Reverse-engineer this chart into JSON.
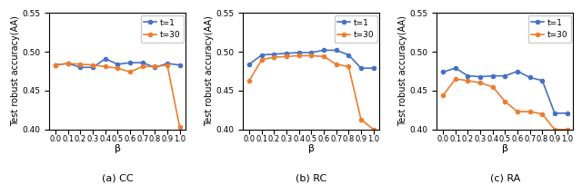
{
  "beta": [
    0.0,
    0.1,
    0.2,
    0.3,
    0.4,
    0.5,
    0.6,
    0.7,
    0.8,
    0.9,
    1.0
  ],
  "CC": {
    "t1": [
      0.483,
      0.485,
      0.48,
      0.48,
      0.491,
      0.484,
      0.486,
      0.486,
      0.48,
      0.485,
      0.483
    ],
    "t30": [
      0.483,
      0.485,
      0.484,
      0.483,
      0.481,
      0.479,
      0.474,
      0.481,
      0.481,
      0.483,
      0.403
    ]
  },
  "RC": {
    "t1": [
      0.484,
      0.496,
      0.497,
      0.498,
      0.499,
      0.499,
      0.502,
      0.502,
      0.496,
      0.479,
      0.479
    ],
    "t30": [
      0.463,
      0.49,
      0.493,
      0.494,
      0.495,
      0.495,
      0.494,
      0.484,
      0.481,
      0.413,
      0.4
    ]
  },
  "RA": {
    "t1": [
      0.474,
      0.479,
      0.469,
      0.468,
      0.469,
      0.469,
      0.475,
      0.467,
      0.463,
      0.421,
      0.421
    ],
    "t30": [
      0.444,
      0.465,
      0.463,
      0.46,
      0.455,
      0.436,
      0.423,
      0.423,
      0.42,
      0.4,
      0.4
    ]
  },
  "color_t1": "#4472C4",
  "color_t30": "#ED7D31",
  "ylim": [
    0.4,
    0.55
  ],
  "yticks": [
    0.4,
    0.45,
    0.5,
    0.55
  ],
  "xtick_labels": [
    "0.0",
    "0.1",
    "0.2",
    "0.3",
    "0.4",
    "0.5",
    "0.6",
    "0.7",
    "0.8",
    "0.9",
    "1.0"
  ],
  "xlabel": "β",
  "ylabel": "Test robust accuracy(AA)",
  "subtitles": [
    "(a) CC",
    "(b) RC",
    "(c) RA"
  ],
  "legend_t1": "t=1",
  "legend_t30": "t=30",
  "marker": "o",
  "markersize": 3,
  "linewidth": 1.2
}
